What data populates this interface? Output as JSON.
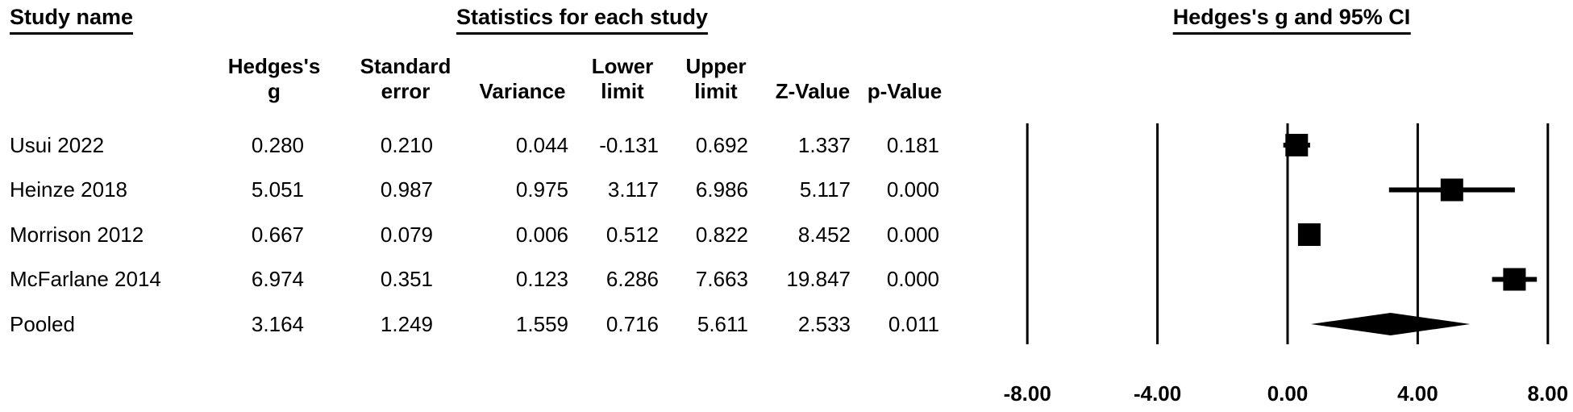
{
  "titles": {
    "study_column": "Study name",
    "stats_section": "Statistics for each study",
    "plot_section": "Hedges's g and 95% CI"
  },
  "table": {
    "column_headers": [
      {
        "line1": "Hedges's",
        "line2": "g"
      },
      {
        "line1": "Standard",
        "line2": "error"
      },
      {
        "line1": "",
        "line2": "Variance"
      },
      {
        "line1": "Lower",
        "line2": "limit"
      },
      {
        "line1": "Upper",
        "line2": "limit"
      },
      {
        "line1": "",
        "line2": "Z-Value"
      },
      {
        "line1": "",
        "line2": "p-Value"
      }
    ],
    "rows": [
      {
        "study": "Usui 2022",
        "hedges_g": "0.280",
        "standard_error": "0.210",
        "variance": "0.044",
        "lower_limit": "-0.131",
        "upper_limit": "0.692",
        "z_value": "1.337",
        "p_value": "0.181"
      },
      {
        "study": "Heinze 2018",
        "hedges_g": "5.051",
        "standard_error": "0.987",
        "variance": "0.975",
        "lower_limit": "3.117",
        "upper_limit": "6.986",
        "z_value": "5.117",
        "p_value": "0.000"
      },
      {
        "study": "Morrison 2012",
        "hedges_g": "0.667",
        "standard_error": "0.079",
        "variance": "0.006",
        "lower_limit": "0.512",
        "upper_limit": "0.822",
        "z_value": "8.452",
        "p_value": "0.000"
      },
      {
        "study": "McFarlane 2014",
        "hedges_g": "6.974",
        "standard_error": "0.351",
        "variance": "0.123",
        "lower_limit": "6.286",
        "upper_limit": "7.663",
        "z_value": "19.847",
        "p_value": "0.000"
      },
      {
        "study": "Pooled",
        "hedges_g": "3.164",
        "standard_error": "1.249",
        "variance": "1.559",
        "lower_limit": "0.716",
        "upper_limit": "5.611",
        "z_value": "2.533",
        "p_value": "0.011"
      }
    ]
  },
  "chart_data": {
    "type": "forest",
    "title": "Hedges's g and 95% CI",
    "effect_measure": "Hedges's g",
    "xlim": [
      -8,
      8
    ],
    "x_ticks": [
      -8,
      -4,
      0,
      4,
      8
    ],
    "x_tick_labels": [
      "-8.00",
      "-4.00",
      "0.00",
      "4.00",
      "8.00"
    ],
    "grid": "vertical-lines-at-ticks",
    "marker_color": "#000000",
    "studies": [
      {
        "name": "Usui 2022",
        "g": 0.28,
        "ci_lower": -0.131,
        "ci_upper": 0.692,
        "marker": "square"
      },
      {
        "name": "Heinze 2018",
        "g": 5.051,
        "ci_lower": 3.117,
        "ci_upper": 6.986,
        "marker": "square"
      },
      {
        "name": "Morrison 2012",
        "g": 0.667,
        "ci_lower": 0.512,
        "ci_upper": 0.822,
        "marker": "square"
      },
      {
        "name": "McFarlane 2014",
        "g": 6.974,
        "ci_lower": 6.286,
        "ci_upper": 7.663,
        "marker": "square"
      },
      {
        "name": "Pooled",
        "g": 3.164,
        "ci_lower": 0.716,
        "ci_upper": 5.611,
        "marker": "diamond"
      }
    ]
  }
}
